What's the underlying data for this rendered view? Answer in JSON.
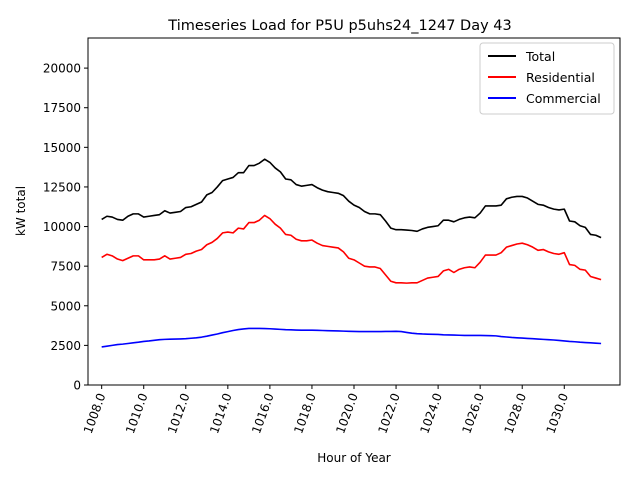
{
  "chart_data": {
    "type": "line",
    "title": "Timeseries Load for P5U p5uhs24_1247  Day 43",
    "xlabel": "Hour of Year",
    "ylabel": "kW total",
    "xlim": [
      1007.35,
      1032.65
    ],
    "ylim": [
      0,
      21900
    ],
    "xticks": [
      1008,
      1010,
      1012,
      1014,
      1016,
      1018,
      1020,
      1022,
      1024,
      1026,
      1028,
      1030
    ],
    "xtick_labels": [
      "1008.0",
      "1010.0",
      "1012.0",
      "1014.0",
      "1016.0",
      "1018.0",
      "1020.0",
      "1022.0",
      "1024.0",
      "1026.0",
      "1028.0",
      "1030.0"
    ],
    "yticks": [
      0,
      2500,
      5000,
      7500,
      10000,
      12500,
      15000,
      17500,
      20000
    ],
    "ytick_labels": [
      "0",
      "2500",
      "5000",
      "7500",
      "10000",
      "12500",
      "15000",
      "17500",
      "20000"
    ],
    "grid": false,
    "legend_position": "top-right",
    "x": [
      1008.0,
      1008.25,
      1008.5,
      1008.75,
      1009.0,
      1009.25,
      1009.5,
      1009.75,
      1010.0,
      1010.25,
      1010.5,
      1010.75,
      1011.0,
      1011.25,
      1011.5,
      1011.75,
      1012.0,
      1012.25,
      1012.5,
      1012.75,
      1013.0,
      1013.25,
      1013.5,
      1013.75,
      1014.0,
      1014.25,
      1014.5,
      1014.75,
      1015.0,
      1015.25,
      1015.5,
      1015.75,
      1016.0,
      1016.25,
      1016.5,
      1016.75,
      1017.0,
      1017.25,
      1017.5,
      1017.75,
      1018.0,
      1018.25,
      1018.5,
      1018.75,
      1019.0,
      1019.25,
      1019.5,
      1019.75,
      1020.0,
      1020.25,
      1020.5,
      1020.75,
      1021.0,
      1021.25,
      1021.5,
      1021.75,
      1022.0,
      1022.25,
      1022.5,
      1022.75,
      1023.0,
      1023.25,
      1023.5,
      1023.75,
      1024.0,
      1024.25,
      1024.5,
      1024.75,
      1025.0,
      1025.25,
      1025.5,
      1025.75,
      1026.0,
      1026.25,
      1026.5,
      1026.75,
      1027.0,
      1027.25,
      1027.5,
      1027.75,
      1028.0,
      1028.25,
      1028.5,
      1028.75,
      1029.0,
      1029.25,
      1029.5,
      1029.75,
      1030.0,
      1030.25,
      1030.5,
      1030.75,
      1031.0,
      1031.25,
      1031.5,
      1031.75
    ],
    "series": [
      {
        "name": "Total",
        "color": "#000000",
        "values": [
          10450,
          10650,
          10600,
          10450,
          10400,
          10650,
          10800,
          10800,
          10600,
          10650,
          10700,
          10750,
          11000,
          10850,
          10900,
          10950,
          11200,
          11250,
          11400,
          11550,
          12000,
          12150,
          12500,
          12900,
          13000,
          13100,
          13400,
          13400,
          13850,
          13850,
          14000,
          14250,
          14050,
          13700,
          13450,
          13000,
          12950,
          12650,
          12550,
          12600,
          12650,
          12450,
          12300,
          12200,
          12150,
          12100,
          11950,
          11600,
          11350,
          11200,
          10950,
          10800,
          10800,
          10750,
          10350,
          9900,
          9800,
          9800,
          9780,
          9750,
          9700,
          9850,
          9950,
          10000,
          10050,
          10400,
          10400,
          10300,
          10450,
          10550,
          10600,
          10550,
          10850,
          11300,
          11300,
          11300,
          11350,
          11750,
          11850,
          11900,
          11900,
          11800,
          11600,
          11400,
          11350,
          11200,
          11100,
          11050,
          11100,
          10350,
          10300,
          10050,
          9950,
          9500,
          9450,
          9300
        ]
      },
      {
        "name": "Residential",
        "color": "#ff0000",
        "values": [
          8050,
          8250,
          8150,
          7950,
          7850,
          8000,
          8150,
          8150,
          7900,
          7900,
          7900,
          7950,
          8150,
          7950,
          8000,
          8050,
          8250,
          8300,
          8450,
          8550,
          8850,
          9000,
          9250,
          9600,
          9650,
          9600,
          9900,
          9850,
          10250,
          10250,
          10400,
          10700,
          10500,
          10150,
          9900,
          9500,
          9450,
          9200,
          9100,
          9100,
          9150,
          8950,
          8800,
          8750,
          8700,
          8650,
          8400,
          8000,
          7900,
          7700,
          7500,
          7450,
          7450,
          7350,
          6950,
          6550,
          6450,
          6450,
          6430,
          6450,
          6450,
          6600,
          6750,
          6800,
          6850,
          7200,
          7300,
          7100,
          7300,
          7400,
          7450,
          7400,
          7750,
          8200,
          8200,
          8200,
          8350,
          8700,
          8800,
          8900,
          8950,
          8850,
          8700,
          8500,
          8550,
          8400,
          8300,
          8250,
          8350,
          7600,
          7550,
          7300,
          7250,
          6850,
          6750,
          6650
        ]
      },
      {
        "name": "Commercial",
        "color": "#0000ff",
        "values": [
          2400,
          2450,
          2500,
          2550,
          2580,
          2620,
          2660,
          2700,
          2750,
          2780,
          2820,
          2860,
          2880,
          2890,
          2900,
          2910,
          2920,
          2950,
          2980,
          3020,
          3080,
          3150,
          3220,
          3300,
          3370,
          3440,
          3500,
          3540,
          3570,
          3570,
          3570,
          3560,
          3550,
          3530,
          3510,
          3490,
          3480,
          3470,
          3460,
          3460,
          3460,
          3450,
          3440,
          3430,
          3420,
          3410,
          3400,
          3390,
          3380,
          3370,
          3370,
          3370,
          3370,
          3370,
          3380,
          3380,
          3390,
          3370,
          3320,
          3270,
          3240,
          3220,
          3210,
          3200,
          3190,
          3170,
          3160,
          3150,
          3140,
          3130,
          3130,
          3130,
          3130,
          3120,
          3110,
          3100,
          3060,
          3030,
          3000,
          2980,
          2960,
          2940,
          2920,
          2900,
          2880,
          2860,
          2840,
          2810,
          2780,
          2750,
          2730,
          2700,
          2680,
          2660,
          2640,
          2620
        ]
      }
    ]
  }
}
